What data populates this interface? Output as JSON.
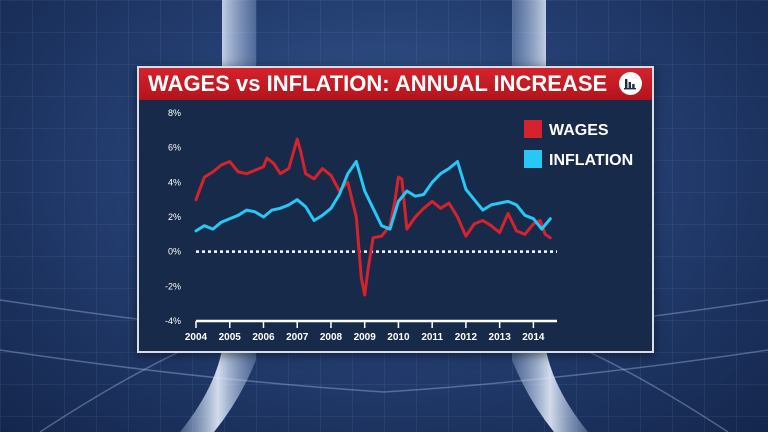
{
  "title": "WAGES vs INFLATION: ANNUAL INCREASE",
  "icon": "bar-chart-icon",
  "colors": {
    "title_bar": "#c41b23",
    "wages": "#d4232c",
    "inflation": "#27c8f5",
    "panel": "#172a4a"
  },
  "chart_data": {
    "type": "line",
    "title": "WAGES vs INFLATION: ANNUAL INCREASE",
    "xlabel": "",
    "ylabel": "",
    "x_ticks": [
      "2004",
      "2005",
      "2006",
      "2007",
      "2008",
      "2009",
      "2010",
      "2011",
      "2012",
      "2013",
      "2014"
    ],
    "y_ticks": [
      "8%",
      "6%",
      "4%",
      "2%",
      "0%",
      "-2%",
      "-4%"
    ],
    "ylim": [
      -4,
      8
    ],
    "xlim": [
      2004,
      2014.7
    ],
    "zero_line": "dotted",
    "legend_position": "top-right",
    "series": [
      {
        "name": "WAGES",
        "x": [
          2004.0,
          2004.25,
          2004.5,
          2004.75,
          2005.0,
          2005.25,
          2005.5,
          2005.75,
          2006.0,
          2006.1,
          2006.3,
          2006.5,
          2006.75,
          2007.0,
          2007.1,
          2007.25,
          2007.5,
          2007.75,
          2008.0,
          2008.25,
          2008.5,
          2008.75,
          2008.9,
          2009.0,
          2009.1,
          2009.25,
          2009.5,
          2009.75,
          2009.9,
          2010.0,
          2010.1,
          2010.25,
          2010.5,
          2010.75,
          2011.0,
          2011.25,
          2011.5,
          2011.75,
          2012.0,
          2012.25,
          2012.5,
          2012.75,
          2013.0,
          2013.25,
          2013.5,
          2013.75,
          2014.0,
          2014.2,
          2014.35,
          2014.5
        ],
        "values": [
          3.0,
          4.3,
          4.6,
          5.0,
          5.2,
          4.6,
          4.5,
          4.7,
          4.9,
          5.4,
          5.1,
          4.5,
          4.8,
          6.5,
          5.8,
          4.5,
          4.2,
          4.8,
          4.4,
          3.5,
          4.0,
          2.0,
          -1.5,
          -2.5,
          -1.0,
          0.8,
          0.9,
          1.5,
          3.0,
          4.3,
          4.2,
          1.3,
          2.0,
          2.5,
          2.9,
          2.5,
          2.8,
          2.0,
          0.9,
          1.6,
          1.8,
          1.5,
          1.1,
          2.2,
          1.2,
          1.0,
          1.6,
          1.8,
          1.0,
          0.8
        ]
      },
      {
        "name": "INFLATION",
        "x": [
          2004.0,
          2004.25,
          2004.5,
          2004.75,
          2005.0,
          2005.25,
          2005.5,
          2005.75,
          2006.0,
          2006.25,
          2006.5,
          2006.75,
          2007.0,
          2007.25,
          2007.5,
          2007.75,
          2008.0,
          2008.25,
          2008.5,
          2008.75,
          2009.0,
          2009.25,
          2009.5,
          2009.75,
          2010.0,
          2010.25,
          2010.5,
          2010.75,
          2011.0,
          2011.25,
          2011.5,
          2011.75,
          2012.0,
          2012.25,
          2012.5,
          2012.75,
          2013.0,
          2013.25,
          2013.5,
          2013.75,
          2014.0,
          2014.25,
          2014.5
        ],
        "values": [
          1.2,
          1.5,
          1.3,
          1.7,
          1.9,
          2.1,
          2.4,
          2.3,
          2.0,
          2.4,
          2.5,
          2.7,
          3.0,
          2.6,
          1.8,
          2.1,
          2.5,
          3.3,
          4.5,
          5.2,
          3.5,
          2.5,
          1.5,
          1.3,
          2.9,
          3.5,
          3.2,
          3.3,
          4.0,
          4.5,
          4.8,
          5.2,
          3.6,
          3.0,
          2.4,
          2.7,
          2.8,
          2.9,
          2.7,
          2.1,
          1.9,
          1.3,
          1.9
        ]
      }
    ]
  }
}
